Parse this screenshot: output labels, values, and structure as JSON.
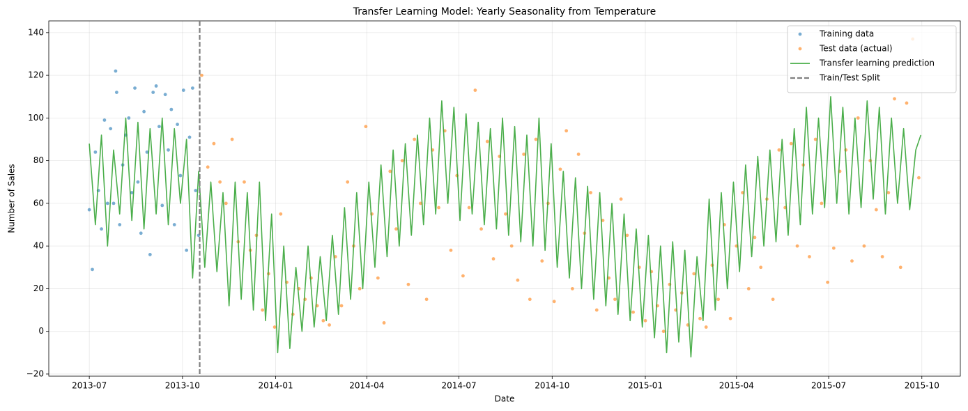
{
  "chart_data": {
    "type": "line",
    "title": "Transfer Learning Model: Yearly Seasonality from Temperature",
    "x_label": "Date",
    "y_label": "Number of Sales",
    "xlim": [
      "2013-05-22",
      "2015-11-08"
    ],
    "ylim": [
      -21,
      145.5
    ],
    "xticks": [
      {
        "value": "2013-07-01",
        "label": "2013-07"
      },
      {
        "value": "2013-10-01",
        "label": "2013-10"
      },
      {
        "value": "2014-01-01",
        "label": "2014-01"
      },
      {
        "value": "2014-04-01",
        "label": "2014-04"
      },
      {
        "value": "2014-07-01",
        "label": "2014-07"
      },
      {
        "value": "2014-10-01",
        "label": "2014-10"
      },
      {
        "value": "2015-01-01",
        "label": "2015-01"
      },
      {
        "value": "2015-04-01",
        "label": "2015-04"
      },
      {
        "value": "2015-07-01",
        "label": "2015-07"
      },
      {
        "value": "2015-10-01",
        "label": "2015-10"
      }
    ],
    "yticks": [
      {
        "value": -20,
        "label": "−20"
      },
      0,
      20,
      40,
      60,
      80,
      100,
      120,
      140
    ],
    "grid": true,
    "legend": "upper right",
    "series": [
      {
        "name": "Training data",
        "type": "scatter",
        "color": "#1f77b4",
        "x": [
          "2013-07-01",
          "2013-07-04",
          "2013-07-07",
          "2013-07-10",
          "2013-07-13",
          "2013-07-16",
          "2013-07-19",
          "2013-07-22",
          "2013-07-25",
          "2013-07-27",
          "2013-07-28",
          "2013-07-31",
          "2013-08-03",
          "2013-08-06",
          "2013-08-09",
          "2013-08-12",
          "2013-08-15",
          "2013-08-18",
          "2013-08-21",
          "2013-08-24",
          "2013-08-27",
          "2013-08-30",
          "2013-09-02",
          "2013-09-05",
          "2013-09-08",
          "2013-09-11",
          "2013-09-14",
          "2013-09-17",
          "2013-09-20",
          "2013-09-23",
          "2013-09-26",
          "2013-09-29",
          "2013-10-02",
          "2013-10-05",
          "2013-10-08",
          "2013-10-11",
          "2013-10-14",
          "2013-10-17"
        ],
        "values": [
          57,
          29,
          84,
          66,
          48,
          99,
          60,
          95,
          60,
          122,
          112,
          50,
          78,
          92,
          100,
          65,
          114,
          70,
          46,
          103,
          84,
          36,
          112,
          115,
          96,
          59,
          111,
          85,
          104,
          50,
          97,
          73,
          113,
          38,
          91,
          114,
          66,
          45
        ]
      },
      {
        "name": "Test data (actual)",
        "type": "scatter",
        "color": "#ff7f0e",
        "x": [
          "2013-10-20",
          "2013-10-26",
          "2013-11-01",
          "2013-11-07",
          "2013-11-13",
          "2013-11-19",
          "2013-11-25",
          "2013-12-01",
          "2013-12-07",
          "2013-12-13",
          "2013-12-19",
          "2013-12-25",
          "2013-12-31",
          "2014-01-06",
          "2014-01-12",
          "2014-01-18",
          "2014-01-24",
          "2014-01-30",
          "2014-02-05",
          "2014-02-11",
          "2014-02-17",
          "2014-02-23",
          "2014-03-01",
          "2014-03-07",
          "2014-03-13",
          "2014-03-19",
          "2014-03-25",
          "2014-03-31",
          "2014-04-06",
          "2014-04-12",
          "2014-04-18",
          "2014-04-24",
          "2014-04-30",
          "2014-05-06",
          "2014-05-12",
          "2014-05-18",
          "2014-05-24",
          "2014-05-30",
          "2014-06-05",
          "2014-06-11",
          "2014-06-17",
          "2014-06-23",
          "2014-06-29",
          "2014-07-05",
          "2014-07-11",
          "2014-07-17",
          "2014-07-23",
          "2014-07-29",
          "2014-08-04",
          "2014-08-10",
          "2014-08-16",
          "2014-08-22",
          "2014-08-28",
          "2014-09-03",
          "2014-09-09",
          "2014-09-15",
          "2014-09-21",
          "2014-09-27",
          "2014-10-03",
          "2014-10-09",
          "2014-10-15",
          "2014-10-21",
          "2014-10-27",
          "2014-11-02",
          "2014-11-08",
          "2014-11-14",
          "2014-11-20",
          "2014-11-26",
          "2014-12-02",
          "2014-12-08",
          "2014-12-14",
          "2014-12-20",
          "2014-12-26",
          "2015-01-01",
          "2015-01-07",
          "2015-01-13",
          "2015-01-19",
          "2015-01-25",
          "2015-01-31",
          "2015-02-06",
          "2015-02-12",
          "2015-02-18",
          "2015-02-24",
          "2015-03-02",
          "2015-03-08",
          "2015-03-14",
          "2015-03-20",
          "2015-03-26",
          "2015-04-01",
          "2015-04-07",
          "2015-04-13",
          "2015-04-19",
          "2015-04-25",
          "2015-05-01",
          "2015-05-07",
          "2015-05-13",
          "2015-05-19",
          "2015-05-25",
          "2015-05-31",
          "2015-06-06",
          "2015-06-12",
          "2015-06-18",
          "2015-06-24",
          "2015-06-30",
          "2015-07-06",
          "2015-07-12",
          "2015-07-18",
          "2015-07-24",
          "2015-07-30",
          "2015-08-05",
          "2015-08-11",
          "2015-08-17",
          "2015-08-23",
          "2015-08-29",
          "2015-09-04",
          "2015-09-10",
          "2015-09-16",
          "2015-09-22",
          "2015-09-28"
        ],
        "values": [
          120,
          77,
          88,
          70,
          60,
          90,
          42,
          70,
          38,
          45,
          10,
          27,
          2,
          55,
          23,
          8,
          20,
          15,
          25,
          12,
          5,
          3,
          35,
          12,
          70,
          40,
          20,
          96,
          55,
          25,
          4,
          75,
          48,
          80,
          22,
          90,
          60,
          15,
          85,
          58,
          94,
          38,
          73,
          26,
          58,
          113,
          48,
          89,
          34,
          82,
          55,
          40,
          24,
          83,
          15,
          90,
          33,
          60,
          14,
          76,
          94,
          20,
          83,
          46,
          65,
          10,
          52,
          25,
          15,
          62,
          45,
          9,
          30,
          5,
          28,
          12,
          0,
          22,
          10,
          18,
          3,
          27,
          6,
          2,
          31,
          15,
          50,
          6,
          40,
          65,
          20,
          44,
          30,
          62,
          15,
          85,
          58,
          88,
          40,
          78,
          35,
          90,
          60,
          23,
          39,
          75,
          85,
          33,
          100,
          40,
          80,
          57,
          35,
          65,
          109,
          30,
          107,
          137,
          72
        ]
      },
      {
        "name": "Transfer learning prediction",
        "type": "line",
        "color": "#2ca02c",
        "x": [
          "2013-07-01",
          "2013-07-07",
          "2013-07-13",
          "2013-07-19",
          "2013-07-25",
          "2013-07-31",
          "2013-08-06",
          "2013-08-12",
          "2013-08-18",
          "2013-08-24",
          "2013-08-30",
          "2013-09-05",
          "2013-09-11",
          "2013-09-17",
          "2013-09-23",
          "2013-09-29",
          "2013-10-05",
          "2013-10-11",
          "2013-10-17",
          "2013-10-23",
          "2013-10-29",
          "2013-11-04",
          "2013-11-10",
          "2013-11-16",
          "2013-11-22",
          "2013-11-28",
          "2013-12-04",
          "2013-12-10",
          "2013-12-16",
          "2013-12-22",
          "2013-12-28",
          "2014-01-03",
          "2014-01-09",
          "2014-01-15",
          "2014-01-21",
          "2014-01-27",
          "2014-02-02",
          "2014-02-08",
          "2014-02-14",
          "2014-02-20",
          "2014-02-26",
          "2014-03-04",
          "2014-03-10",
          "2014-03-16",
          "2014-03-22",
          "2014-03-28",
          "2014-04-03",
          "2014-04-09",
          "2014-04-15",
          "2014-04-21",
          "2014-04-27",
          "2014-05-03",
          "2014-05-09",
          "2014-05-15",
          "2014-05-21",
          "2014-05-27",
          "2014-06-02",
          "2014-06-08",
          "2014-06-14",
          "2014-06-20",
          "2014-06-26",
          "2014-07-02",
          "2014-07-08",
          "2014-07-14",
          "2014-07-20",
          "2014-07-26",
          "2014-08-01",
          "2014-08-07",
          "2014-08-13",
          "2014-08-19",
          "2014-08-25",
          "2014-08-31",
          "2014-09-06",
          "2014-09-12",
          "2014-09-18",
          "2014-09-24",
          "2014-09-30",
          "2014-10-06",
          "2014-10-12",
          "2014-10-18",
          "2014-10-24",
          "2014-10-30",
          "2014-11-05",
          "2014-11-11",
          "2014-11-17",
          "2014-11-23",
          "2014-11-29",
          "2014-12-05",
          "2014-12-11",
          "2014-12-17",
          "2014-12-23",
          "2014-12-29",
          "2015-01-04",
          "2015-01-10",
          "2015-01-16",
          "2015-01-22",
          "2015-01-28",
          "2015-02-03",
          "2015-02-09",
          "2015-02-15",
          "2015-02-21",
          "2015-02-27",
          "2015-03-05",
          "2015-03-11",
          "2015-03-17",
          "2015-03-23",
          "2015-03-29",
          "2015-04-04",
          "2015-04-10",
          "2015-04-16",
          "2015-04-22",
          "2015-04-28",
          "2015-05-04",
          "2015-05-10",
          "2015-05-16",
          "2015-05-22",
          "2015-05-28",
          "2015-06-03",
          "2015-06-09",
          "2015-06-15",
          "2015-06-21",
          "2015-06-27",
          "2015-07-03",
          "2015-07-09",
          "2015-07-15",
          "2015-07-21",
          "2015-07-27",
          "2015-08-02",
          "2015-08-08",
          "2015-08-14",
          "2015-08-20",
          "2015-08-26",
          "2015-09-01",
          "2015-09-07",
          "2015-09-13",
          "2015-09-19",
          "2015-09-25",
          "2015-09-30"
        ],
        "values": [
          88,
          50,
          92,
          40,
          85,
          55,
          100,
          52,
          98,
          48,
          95,
          55,
          100,
          50,
          95,
          60,
          90,
          25,
          75,
          30,
          70,
          28,
          65,
          12,
          70,
          15,
          65,
          10,
          70,
          5,
          55,
          -10,
          40,
          -8,
          30,
          0,
          40,
          2,
          35,
          5,
          45,
          8,
          58,
          15,
          65,
          20,
          70,
          30,
          78,
          35,
          85,
          40,
          88,
          45,
          92,
          50,
          100,
          55,
          108,
          60,
          105,
          52,
          102,
          55,
          98,
          50,
          95,
          48,
          100,
          45,
          96,
          42,
          92,
          40,
          100,
          38,
          88,
          30,
          75,
          25,
          72,
          20,
          68,
          15,
          65,
          12,
          60,
          8,
          55,
          5,
          48,
          2,
          45,
          -3,
          40,
          -10,
          42,
          -5,
          38,
          -12,
          35,
          5,
          62,
          10,
          65,
          20,
          70,
          28,
          78,
          35,
          82,
          40,
          85,
          42,
          90,
          45,
          95,
          50,
          105,
          55,
          100,
          58,
          110,
          60,
          105,
          55,
          100,
          58,
          108,
          62,
          105,
          55,
          100,
          60,
          95,
          57,
          85,
          92
        ]
      }
    ],
    "split": {
      "name": "Train/Test Split",
      "x": "2013-10-18",
      "color": "#808080"
    }
  }
}
